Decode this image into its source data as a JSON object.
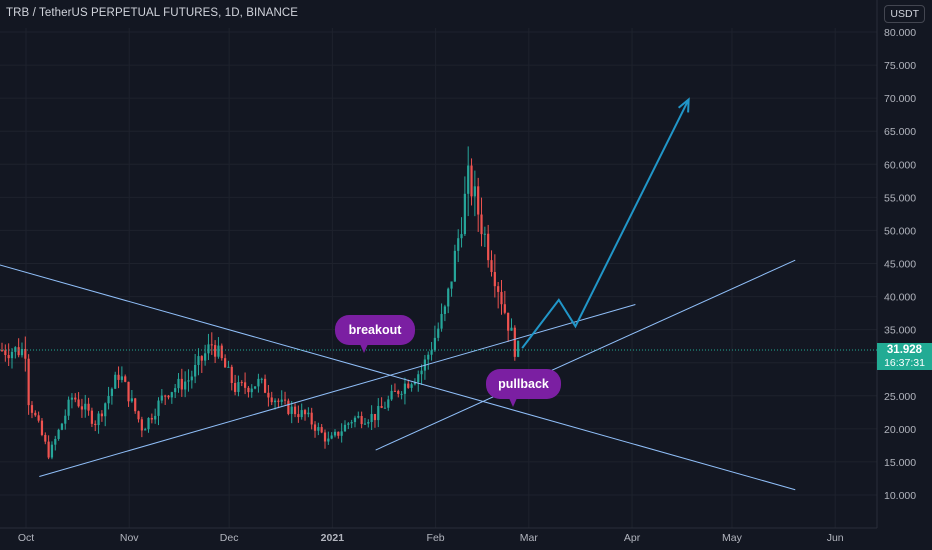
{
  "header": {
    "title": "TRB / TetherUS PERPETUAL FUTURES, 1D, BINANCE",
    "currency": "USDT"
  },
  "price_label": {
    "value": "31.928",
    "countdown": "16:37:31"
  },
  "annotations": {
    "breakout": "breakout",
    "pullback": "pullback"
  },
  "colors": {
    "background": "#131722",
    "up": "#26a69a",
    "down": "#ef5350",
    "trendline": "#90bff9",
    "projection": "#2196c8",
    "bubble": "#7b1fa2",
    "price_badge": "#22ab94"
  },
  "chart_data": {
    "type": "candlestick",
    "title": "TRB / TetherUS PERPETUAL FUTURES, 1D, BINANCE",
    "y_axis_ticks": [
      "80.000",
      "75.000",
      "70.000",
      "65.000",
      "60.000",
      "55.000",
      "50.000",
      "45.000",
      "40.000",
      "35.000",
      "30.000",
      "25.000",
      "20.000",
      "15.000",
      "10.000"
    ],
    "x_axis_ticks": [
      "Oct",
      "Nov",
      "Dec",
      "2021",
      "Feb",
      "Mar",
      "Apr",
      "May",
      "Jun"
    ],
    "ylim": [
      8,
      82
    ],
    "last_price": 31.928,
    "closes_approx": [
      {
        "date": "2020-10-01",
        "close": 25.5
      },
      {
        "date": "2020-10-08",
        "close": 16.0
      },
      {
        "date": "2020-10-15",
        "close": 25.0
      },
      {
        "date": "2020-10-22",
        "close": 21.0
      },
      {
        "date": "2020-10-29",
        "close": 28.5
      },
      {
        "date": "2020-11-05",
        "close": 20.0
      },
      {
        "date": "2020-11-12",
        "close": 25.5
      },
      {
        "date": "2020-11-19",
        "close": 27.5
      },
      {
        "date": "2020-11-26",
        "close": 33.0
      },
      {
        "date": "2020-12-03",
        "close": 26.0
      },
      {
        "date": "2020-12-10",
        "close": 27.0
      },
      {
        "date": "2020-12-17",
        "close": 23.5
      },
      {
        "date": "2020-12-24",
        "close": 22.0
      },
      {
        "date": "2020-12-31",
        "close": 18.0
      },
      {
        "date": "2021-01-07",
        "close": 21.5
      },
      {
        "date": "2021-01-14",
        "close": 22.0
      },
      {
        "date": "2021-01-21",
        "close": 26.0
      },
      {
        "date": "2021-01-28",
        "close": 29.0
      },
      {
        "date": "2021-02-04",
        "close": 38.0
      },
      {
        "date": "2021-02-11",
        "close": 58.0
      },
      {
        "date": "2021-02-18",
        "close": 45.0
      },
      {
        "date": "2021-02-25",
        "close": 31.9
      }
    ],
    "trendlines": [
      {
        "name": "descending",
        "from": {
          "date": "2020-09-23",
          "price": 44.8
        },
        "to": {
          "date": "2021-05-20",
          "price": 10.8
        }
      },
      {
        "name": "rising-channel-top",
        "from": {
          "date": "2020-10-05",
          "price": 12.8
        },
        "to": {
          "date": "2021-04-02",
          "price": 38.8
        }
      },
      {
        "name": "rising-support",
        "from": {
          "date": "2021-01-14",
          "price": 16.8
        },
        "to": {
          "date": "2021-05-20",
          "price": 45.5
        }
      }
    ],
    "projection": [
      {
        "date": "2021-02-27",
        "price": 32.2
      },
      {
        "date": "2021-03-10",
        "price": 39.5
      },
      {
        "date": "2021-03-15",
        "price": 35.5
      },
      {
        "date": "2021-04-18",
        "price": 69.8
      }
    ],
    "grid": true
  }
}
